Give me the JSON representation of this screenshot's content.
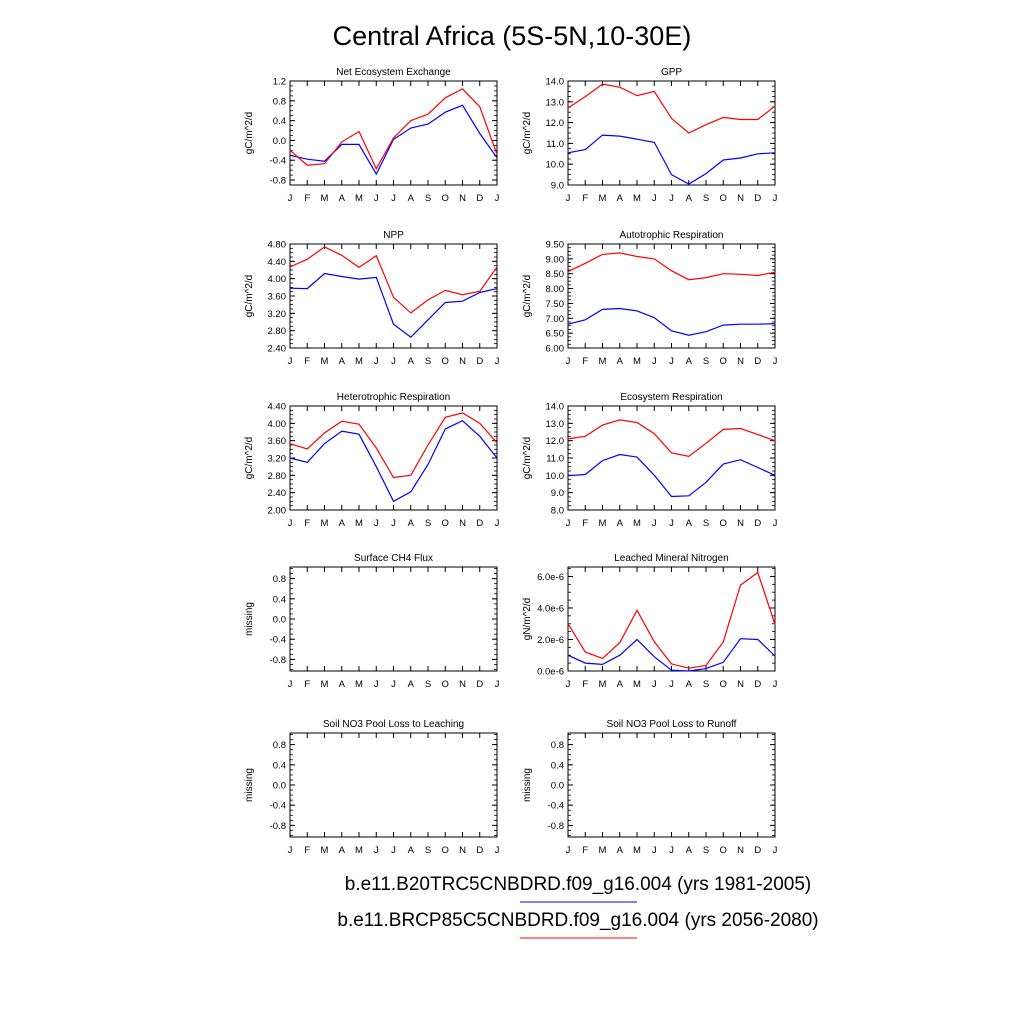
{
  "page": {
    "title": "Central Africa (5S-5N,10-30E)",
    "legend": [
      {
        "label": "b.e11.B20TRC5CNBDRD.f09_g16.004 (yrs 1981-2005)",
        "color": "#0000ff"
      },
      {
        "label": "b.e11.BRCP85C5CNBDRD.f09_g16.004 (yrs 2056-2080)",
        "color": "#ff0000"
      }
    ],
    "colors": {
      "present": "#0000ff",
      "future": "#ff0000"
    }
  },
  "chart_data": [
    {
      "type": "line",
      "title": "Net Ecosystem Exchange",
      "ylabel": "gC/m^2/d",
      "categories": [
        "J",
        "F",
        "M",
        "A",
        "M",
        "J",
        "J",
        "A",
        "S",
        "O",
        "N",
        "D",
        "J"
      ],
      "ylim": [
        -0.9,
        1.2
      ],
      "yticks": [
        -0.8,
        -0.4,
        0.0,
        0.4,
        0.8,
        1.2
      ],
      "ytick_labels": [
        "-0.8",
        "-0.4",
        "0.0",
        "0.4",
        "0.8",
        "1.2"
      ],
      "series": [
        {
          "color": "#0000ff",
          "values": [
            -0.3,
            -0.38,
            -0.42,
            -0.08,
            -0.08,
            -0.68,
            0.02,
            0.25,
            0.33,
            0.57,
            0.71,
            0.14,
            -0.35
          ]
        },
        {
          "color": "#ff0000",
          "values": [
            -0.2,
            -0.5,
            -0.47,
            -0.03,
            0.18,
            -0.57,
            0.05,
            0.4,
            0.53,
            0.86,
            1.04,
            0.68,
            -0.28
          ]
        }
      ]
    },
    {
      "type": "line",
      "title": "GPP",
      "ylabel": "gC/m^2/d",
      "categories": [
        "J",
        "F",
        "M",
        "A",
        "M",
        "J",
        "J",
        "A",
        "S",
        "O",
        "N",
        "D",
        "J"
      ],
      "ylim": [
        9.0,
        14.0
      ],
      "yticks": [
        9,
        10,
        11,
        12,
        13,
        14
      ],
      "ytick_labels": [
        "9.0",
        "10.0",
        "11.0",
        "12.0",
        "13.0",
        "14.0"
      ],
      "series": [
        {
          "color": "#0000ff",
          "values": [
            10.55,
            10.7,
            11.4,
            11.35,
            11.2,
            11.05,
            9.5,
            9.05,
            9.55,
            10.2,
            10.3,
            10.5,
            10.55
          ]
        },
        {
          "color": "#ff0000",
          "values": [
            12.7,
            13.25,
            13.85,
            13.7,
            13.3,
            13.5,
            12.2,
            11.5,
            11.9,
            12.25,
            12.15,
            12.15,
            12.8
          ]
        }
      ]
    },
    {
      "type": "line",
      "title": "NPP",
      "ylabel": "gC/m^2/d",
      "categories": [
        "J",
        "F",
        "M",
        "A",
        "M",
        "J",
        "J",
        "A",
        "S",
        "O",
        "N",
        "D",
        "J"
      ],
      "ylim": [
        2.4,
        4.8
      ],
      "yticks": [
        2.4,
        2.8,
        3.2,
        3.6,
        4.0,
        4.4,
        4.8
      ],
      "ytick_labels": [
        "2.40",
        "2.80",
        "3.20",
        "3.60",
        "4.00",
        "4.40",
        "4.80"
      ],
      "series": [
        {
          "color": "#0000ff",
          "values": [
            3.78,
            3.77,
            4.12,
            4.05,
            3.99,
            4.03,
            2.95,
            2.65,
            3.05,
            3.45,
            3.48,
            3.68,
            3.77
          ]
        },
        {
          "color": "#ff0000",
          "values": [
            4.27,
            4.45,
            4.73,
            4.54,
            4.26,
            4.53,
            3.57,
            3.21,
            3.51,
            3.73,
            3.63,
            3.71,
            4.27
          ]
        }
      ]
    },
    {
      "type": "line",
      "title": "Autotrophic Respiration",
      "ylabel": "gC/m^2/d",
      "categories": [
        "J",
        "F",
        "M",
        "A",
        "M",
        "J",
        "J",
        "A",
        "S",
        "O",
        "N",
        "D",
        "J"
      ],
      "ylim": [
        6.0,
        9.5
      ],
      "yticks": [
        6.0,
        6.5,
        7.0,
        7.5,
        8.0,
        8.5,
        9.0,
        9.5
      ],
      "ytick_labels": [
        "6.00",
        "6.50",
        "7.00",
        "7.50",
        "8.00",
        "8.50",
        "9.00",
        "9.50"
      ],
      "series": [
        {
          "color": "#0000ff",
          "values": [
            6.8,
            6.95,
            7.3,
            7.33,
            7.25,
            7.02,
            6.58,
            6.43,
            6.55,
            6.77,
            6.8,
            6.8,
            6.82
          ]
        },
        {
          "color": "#ff0000",
          "values": [
            8.57,
            8.85,
            9.15,
            9.2,
            9.08,
            9.0,
            8.6,
            8.3,
            8.37,
            8.5,
            8.48,
            8.44,
            8.55
          ]
        }
      ]
    },
    {
      "type": "line",
      "title": "Heterotrophic Respiration",
      "ylabel": "gC/m^2/d",
      "categories": [
        "J",
        "F",
        "M",
        "A",
        "M",
        "J",
        "J",
        "A",
        "S",
        "O",
        "N",
        "D",
        "J"
      ],
      "ylim": [
        2.0,
        4.4
      ],
      "yticks": [
        2.0,
        2.4,
        2.8,
        3.2,
        3.6,
        4.0,
        4.4
      ],
      "ytick_labels": [
        "2.00",
        "2.40",
        "2.80",
        "3.20",
        "3.60",
        "4.00",
        "4.40"
      ],
      "series": [
        {
          "color": "#0000ff",
          "values": [
            3.2,
            3.1,
            3.53,
            3.82,
            3.75,
            3.0,
            2.2,
            2.42,
            3.05,
            3.87,
            4.06,
            3.7,
            3.2
          ]
        },
        {
          "color": "#ff0000",
          "values": [
            3.53,
            3.41,
            3.78,
            4.05,
            3.98,
            3.43,
            2.75,
            2.8,
            3.5,
            4.14,
            4.24,
            4.0,
            3.55
          ]
        }
      ]
    },
    {
      "type": "line",
      "title": "Ecosystem Respiration",
      "ylabel": "gC/m^2/d",
      "categories": [
        "J",
        "F",
        "M",
        "A",
        "M",
        "J",
        "J",
        "A",
        "S",
        "O",
        "N",
        "D",
        "J"
      ],
      "ylim": [
        8.0,
        14.0
      ],
      "yticks": [
        8,
        9,
        10,
        11,
        12,
        13,
        14
      ],
      "ytick_labels": [
        "8.0",
        "9.0",
        "10.0",
        "11.0",
        "12.0",
        "13.0",
        "14.0"
      ],
      "series": [
        {
          "color": "#0000ff",
          "values": [
            9.98,
            10.05,
            10.85,
            11.2,
            11.05,
            10.0,
            8.78,
            8.82,
            9.6,
            10.65,
            10.9,
            10.45,
            10.0
          ]
        },
        {
          "color": "#ff0000",
          "values": [
            12.1,
            12.25,
            12.9,
            13.2,
            13.05,
            12.4,
            11.3,
            11.1,
            11.85,
            12.65,
            12.7,
            12.35,
            12.0
          ]
        }
      ]
    },
    {
      "type": "line",
      "title": "Surface CH4 Flux",
      "ylabel": "missing",
      "categories": [
        "J",
        "F",
        "M",
        "A",
        "M",
        "J",
        "J",
        "A",
        "S",
        "O",
        "N",
        "D",
        "J"
      ],
      "ylim": [
        -1.03,
        1.03
      ],
      "yticks": [
        -0.8,
        -0.4,
        0.0,
        0.4,
        0.8
      ],
      "ytick_labels": [
        "-0.8",
        "-0.4",
        "0.0",
        "0.4",
        "0.8"
      ],
      "series": []
    },
    {
      "type": "line",
      "title": "Leached Mineral Nitrogen",
      "ylabel": "gN/m^2/d",
      "categories": [
        "J",
        "F",
        "M",
        "A",
        "M",
        "J",
        "J",
        "A",
        "S",
        "O",
        "N",
        "D",
        "J"
      ],
      "ylim": [
        0.0,
        6.6e-06
      ],
      "yticks": [
        0.0,
        2e-06,
        4e-06,
        6e-06
      ],
      "ytick_labels": [
        "0.0e-6",
        "2.0e-6",
        "4.0e-6",
        "6.0e-6"
      ],
      "series": [
        {
          "color": "#0000ff",
          "values": [
            1e-06,
            5e-07,
            4.2e-07,
            1e-06,
            2e-06,
            9e-07,
            5e-08,
            0.0,
            1.5e-07,
            5.5e-07,
            2.05e-06,
            2e-06,
            9.5e-07
          ]
        },
        {
          "color": "#ff0000",
          "values": [
            3e-06,
            1.2e-06,
            8e-07,
            1.8e-06,
            3.85e-06,
            1.85e-06,
            4.5e-07,
            1.8e-07,
            3.5e-07,
            1.85e-06,
            5.45e-06,
            6.25e-06,
            2.95e-06
          ]
        }
      ]
    },
    {
      "type": "line",
      "title": "Soil NO3 Pool Loss to Leaching",
      "ylabel": "missing",
      "categories": [
        "J",
        "F",
        "M",
        "A",
        "M",
        "J",
        "J",
        "A",
        "S",
        "O",
        "N",
        "D",
        "J"
      ],
      "ylim": [
        -1.03,
        1.03
      ],
      "yticks": [
        -0.8,
        -0.4,
        0.0,
        0.4,
        0.8
      ],
      "ytick_labels": [
        "-0.8",
        "-0.4",
        "0.0",
        "0.4",
        "0.8"
      ],
      "series": []
    },
    {
      "type": "line",
      "title": "Soil NO3 Pool Loss to Runoff",
      "ylabel": "missing",
      "categories": [
        "J",
        "F",
        "M",
        "A",
        "M",
        "J",
        "J",
        "A",
        "S",
        "O",
        "N",
        "D",
        "J"
      ],
      "ylim": [
        -1.03,
        1.03
      ],
      "yticks": [
        -0.8,
        -0.4,
        0.0,
        0.4,
        0.8
      ],
      "ytick_labels": [
        "-0.8",
        "-0.4",
        "0.0",
        "0.4",
        "0.8"
      ],
      "series": []
    }
  ]
}
